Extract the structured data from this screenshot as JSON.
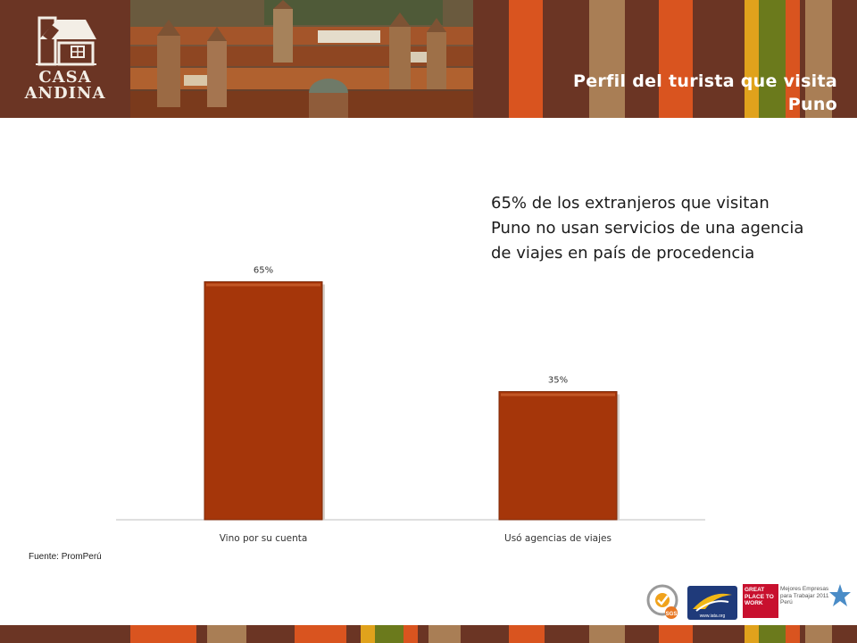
{
  "brand": {
    "name_line1": "CASA",
    "name_line2": "ANDINA"
  },
  "header": {
    "title_line1": "Perfil del turista que visita",
    "title_line2": "Puno"
  },
  "highlight_text": "65% de los extranjeros que visitan Puno no usan servicios de una agencia de viajes en país de procedencia",
  "source": "Fuente: PromPerú",
  "footer": {
    "gptw_text": "GREAT PLACE TO WORK",
    "gptw_caption": "Mejores Empresas para Trabajar 2011 Perú",
    "iata_caption": "www.iata.org",
    "sgs_caption": "SGS"
  },
  "colors": {
    "brown": "#6b3524",
    "bar": "#a5360a",
    "orange": "#d9541f",
    "tan": "#a97e55",
    "gold": "#e0a21c",
    "green": "#6b7a1c"
  },
  "chart_data": {
    "type": "bar",
    "categories": [
      "Vino por su cuenta",
      "Usó agencias de viajes"
    ],
    "values": [
      65,
      35
    ],
    "value_labels": [
      "65%",
      "35%"
    ],
    "ylim": [
      0,
      100
    ],
    "grid": false,
    "legend": "none"
  }
}
